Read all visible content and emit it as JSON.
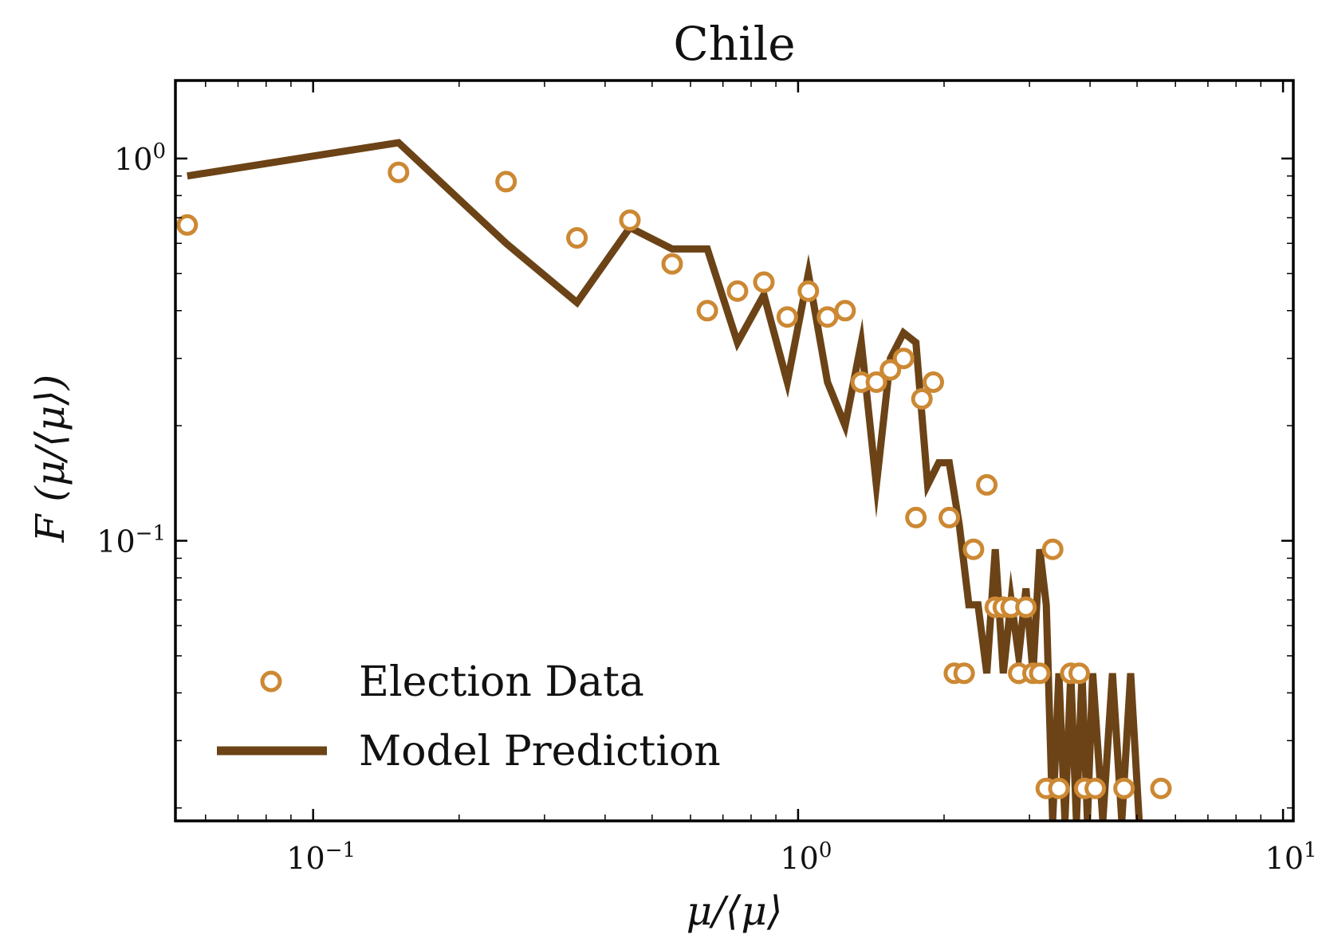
{
  "chart_data": {
    "type": "scatter",
    "title": "Chile",
    "xlabel": "μ/⟨μ⟩",
    "ylabel": "F (μ/⟨μ⟩)",
    "xscale": "log",
    "yscale": "log",
    "xlim": [
      0.052,
      10.5
    ],
    "ylim": [
      0.0185,
      1.6
    ],
    "x_ticks": [
      {
        "value": 0.1,
        "base": "10",
        "exp": "−1"
      },
      {
        "value": 1,
        "base": "10",
        "exp": "0"
      },
      {
        "value": 10,
        "base": "10",
        "exp": "1"
      }
    ],
    "y_ticks": [
      {
        "value": 0.1,
        "base": "10",
        "exp": "−1"
      },
      {
        "value": 1,
        "base": "10",
        "exp": "0"
      }
    ],
    "legend_position": "lower-left",
    "grid": false,
    "colors": {
      "data": "#CC8833",
      "model": "#6B4316"
    },
    "series": [
      {
        "name": "Election Data",
        "kind": "markers",
        "points": [
          [
            0.055,
            0.67
          ],
          [
            0.15,
            0.92
          ],
          [
            0.25,
            0.87
          ],
          [
            0.35,
            0.62
          ],
          [
            0.45,
            0.69
          ],
          [
            0.55,
            0.53
          ],
          [
            0.65,
            0.4
          ],
          [
            0.75,
            0.45
          ],
          [
            0.85,
            0.475
          ],
          [
            0.95,
            0.385
          ],
          [
            1.05,
            0.45
          ],
          [
            1.15,
            0.385
          ],
          [
            1.25,
            0.4
          ],
          [
            1.35,
            0.26
          ],
          [
            1.45,
            0.26
          ],
          [
            1.55,
            0.28
          ],
          [
            1.65,
            0.3
          ],
          [
            1.75,
            0.115
          ],
          [
            1.8,
            0.235
          ],
          [
            1.9,
            0.26
          ],
          [
            2.05,
            0.115
          ],
          [
            2.1,
            0.045
          ],
          [
            2.2,
            0.045
          ],
          [
            2.3,
            0.095
          ],
          [
            2.45,
            0.14
          ],
          [
            2.55,
            0.067
          ],
          [
            2.65,
            0.067
          ],
          [
            2.75,
            0.067
          ],
          [
            2.85,
            0.045
          ],
          [
            2.95,
            0.067
          ],
          [
            3.05,
            0.045
          ],
          [
            3.15,
            0.045
          ],
          [
            3.25,
            0.0225
          ],
          [
            3.35,
            0.095
          ],
          [
            3.45,
            0.0225
          ],
          [
            3.65,
            0.045
          ],
          [
            3.8,
            0.045
          ],
          [
            3.9,
            0.0225
          ],
          [
            4.1,
            0.0225
          ],
          [
            4.7,
            0.0225
          ],
          [
            5.6,
            0.0225
          ]
        ]
      },
      {
        "name": "Model Prediction",
        "kind": "line",
        "points": [
          [
            0.055,
            0.9
          ],
          [
            0.15,
            1.1
          ],
          [
            0.25,
            0.6
          ],
          [
            0.35,
            0.42
          ],
          [
            0.45,
            0.66
          ],
          [
            0.55,
            0.58
          ],
          [
            0.65,
            0.58
          ],
          [
            0.75,
            0.33
          ],
          [
            0.85,
            0.44
          ],
          [
            0.95,
            0.26
          ],
          [
            1.05,
            0.5
          ],
          [
            1.15,
            0.26
          ],
          [
            1.25,
            0.2
          ],
          [
            1.35,
            0.33
          ],
          [
            1.45,
            0.14
          ],
          [
            1.55,
            0.3
          ],
          [
            1.65,
            0.35
          ],
          [
            1.75,
            0.33
          ],
          [
            1.85,
            0.14
          ],
          [
            1.95,
            0.16
          ],
          [
            2.05,
            0.16
          ],
          [
            2.15,
            0.11
          ],
          [
            2.25,
            0.068
          ],
          [
            2.35,
            0.068
          ],
          [
            2.45,
            0.045
          ],
          [
            2.55,
            0.095
          ],
          [
            2.65,
            0.045
          ],
          [
            2.75,
            0.07
          ],
          [
            2.85,
            0.05
          ],
          [
            2.95,
            0.075
          ],
          [
            3.05,
            0.045
          ],
          [
            3.15,
            0.095
          ],
          [
            3.25,
            0.068
          ],
          [
            3.35,
            0.0185
          ],
          [
            3.45,
            0.045
          ],
          [
            3.55,
            0.0185
          ],
          [
            3.65,
            0.045
          ],
          [
            3.75,
            0.0185
          ],
          [
            3.85,
            0.045
          ],
          [
            3.95,
            0.0185
          ],
          [
            4.05,
            0.045
          ],
          [
            4.25,
            0.0185
          ],
          [
            4.45,
            0.045
          ],
          [
            4.65,
            0.0185
          ],
          [
            4.85,
            0.045
          ],
          [
            5.05,
            0.0185
          ]
        ]
      }
    ]
  }
}
